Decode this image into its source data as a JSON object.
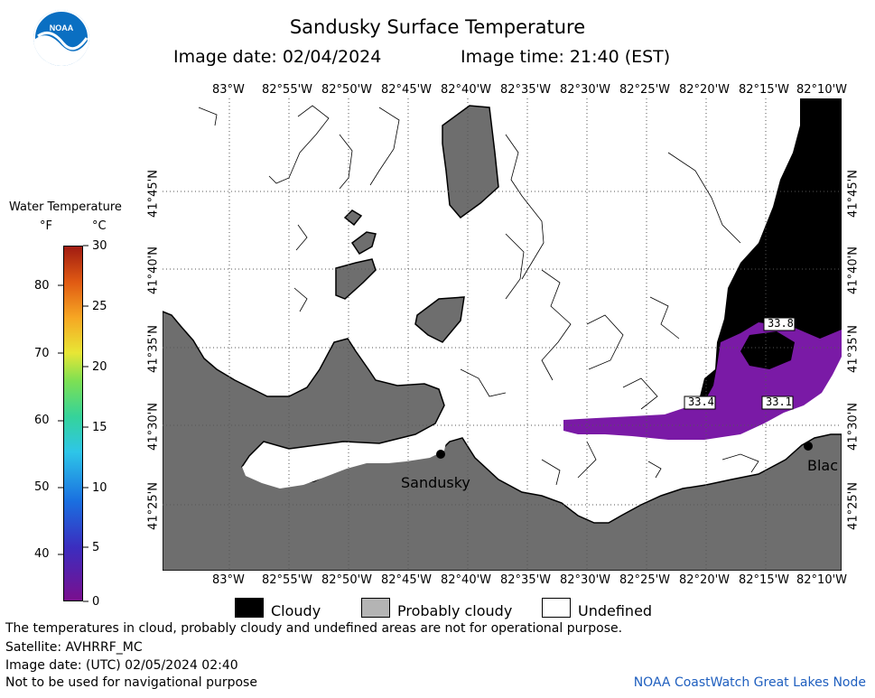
{
  "title": "Sandusky Surface Temperature",
  "image_date_label": "Image date: 02/04/2024",
  "image_time_label": "Image time: 21:40 (EST)",
  "logo_text": "NOAA",
  "legend": {
    "title": "Water Temperature",
    "unit_f": "°F",
    "unit_c": "°C",
    "f_ticks": [
      "80",
      "70",
      "60",
      "50",
      "40"
    ],
    "c_ticks": [
      "30",
      "25",
      "20",
      "15",
      "10",
      "5",
      "0"
    ]
  },
  "lon_labels": [
    "83°W",
    "82°55'W",
    "82°50'W",
    "82°45'W",
    "82°40'W",
    "82°35'W",
    "82°30'W",
    "82°25'W",
    "82°20'W",
    "82°15'W",
    "82°10'W"
  ],
  "lat_labels": [
    "41°45'N",
    "41°40'N",
    "41°35'N",
    "41°30'N",
    "41°25'N"
  ],
  "places": {
    "sandusky": "Sandusky",
    "east": "Blac"
  },
  "temp_labels": [
    "33.8",
    "33.4",
    "33.1"
  ],
  "key_items": {
    "cloudy": "Cloudy",
    "probably_cloudy": "Probably cloudy",
    "undefined": "Undefined"
  },
  "footer": {
    "line1": "The temperatures in cloud, probably cloudy and undefined areas are not for operational purpose.",
    "line2": "Satellite: AVHRRF_MC",
    "line3": "Image date: (UTC) 02/05/2024  02:40",
    "line4": "Not to be used for navigational purpose",
    "credit": "NOAA CoastWatch Great Lakes Node"
  },
  "colors": {
    "land": "#6e6e6e",
    "cloud": "#000000",
    "water_cold": "#7a1aa6",
    "credit": "#1f5fbf"
  }
}
